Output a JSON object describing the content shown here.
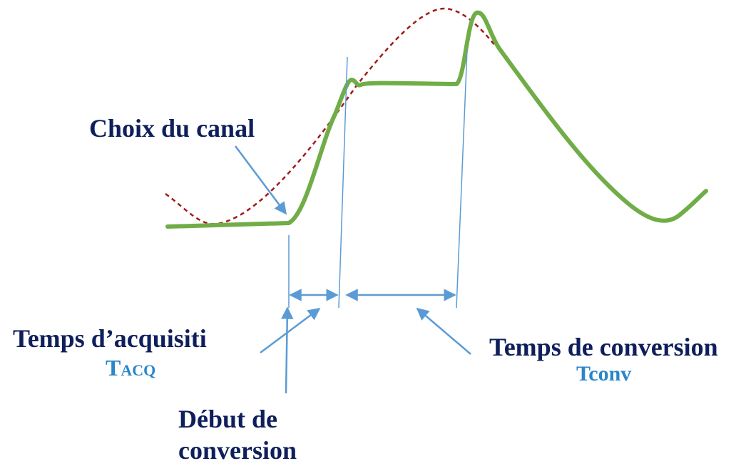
{
  "labels": {
    "channel": "Choix du canal",
    "acquisition": "Temps d’acquisiti",
    "acquisition_symbol": "TACQ",
    "conversion": "Temps de conversion",
    "conversion_symbol": "Tconv",
    "start": [
      "Début de",
      "conversion"
    ]
  }
}
